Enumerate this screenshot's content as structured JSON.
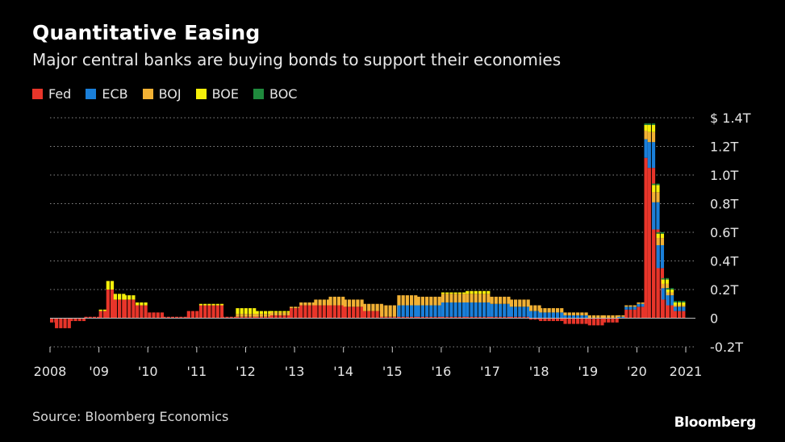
{
  "title": "Quantitative Easing",
  "subtitle": "Major central banks are buying bonds to support their economies",
  "source": "Source: Bloomberg Economics",
  "brand": "Bloomberg",
  "chart_data": {
    "type": "bar",
    "stacked": true,
    "grid": true,
    "legend_position": "top-left",
    "y_axis_side": "right",
    "ylim": [
      -0.2,
      1.4
    ],
    "yticks": [
      {
        "value": 1.4,
        "label": "$ 1.4T"
      },
      {
        "value": 1.2,
        "label": "1.2T"
      },
      {
        "value": 1.0,
        "label": "1.0T"
      },
      {
        "value": 0.8,
        "label": "0.8T"
      },
      {
        "value": 0.6,
        "label": "0.6T"
      },
      {
        "value": 0.4,
        "label": "0.4T"
      },
      {
        "value": 0.2,
        "label": "0.2T"
      },
      {
        "value": 0,
        "label": "0"
      },
      {
        "value": -0.2,
        "label": "-0.2T"
      }
    ],
    "xlim": [
      2008.0,
      2021.0
    ],
    "xticks": [
      {
        "value": 2008,
        "label": "2008"
      },
      {
        "value": 2009,
        "label": "'09"
      },
      {
        "value": 2010,
        "label": "'10"
      },
      {
        "value": 2011,
        "label": "'11"
      },
      {
        "value": 2012,
        "label": "'12"
      },
      {
        "value": 2013,
        "label": "'13"
      },
      {
        "value": 2014,
        "label": "'14"
      },
      {
        "value": 2015,
        "label": "'15"
      },
      {
        "value": 2016,
        "label": "'16"
      },
      {
        "value": 2017,
        "label": "'17"
      },
      {
        "value": 2018,
        "label": "'18"
      },
      {
        "value": 2019,
        "label": "'19"
      },
      {
        "value": 2020,
        "label": "'20"
      },
      {
        "value": 2021,
        "label": "2021"
      }
    ],
    "series": [
      {
        "name": "Fed",
        "color": "#e8352a",
        "key": "fed"
      },
      {
        "name": "ECB",
        "color": "#1a7fd9",
        "key": "ecb"
      },
      {
        "name": "BOJ",
        "color": "#f2b134",
        "key": "boj"
      },
      {
        "name": "BOE",
        "color": "#f5ef0a",
        "key": "boe"
      },
      {
        "name": "BOC",
        "color": "#1f8a3d",
        "key": "boc"
      }
    ],
    "segments": [
      {
        "start": 2008.0,
        "end": 2008.1,
        "fed": -0.03,
        "ecb": 0,
        "boj": 0,
        "boe": 0,
        "boc": 0
      },
      {
        "start": 2008.1,
        "end": 2008.4,
        "fed": -0.07,
        "ecb": 0,
        "boj": 0,
        "boe": 0,
        "boc": 0
      },
      {
        "start": 2008.4,
        "end": 2008.7,
        "fed": -0.02,
        "ecb": 0,
        "boj": 0,
        "boe": 0,
        "boc": 0
      },
      {
        "start": 2008.7,
        "end": 2009.0,
        "fed": 0.01,
        "ecb": 0,
        "boj": 0,
        "boe": 0,
        "boc": 0
      },
      {
        "start": 2009.0,
        "end": 2009.15,
        "fed": 0.05,
        "ecb": 0,
        "boj": 0,
        "boe": 0.01,
        "boc": 0
      },
      {
        "start": 2009.15,
        "end": 2009.3,
        "fed": 0.2,
        "ecb": 0,
        "boj": 0,
        "boe": 0.06,
        "boc": 0
      },
      {
        "start": 2009.3,
        "end": 2009.5,
        "fed": 0.13,
        "ecb": 0,
        "boj": 0,
        "boe": 0.04,
        "boc": 0
      },
      {
        "start": 2009.5,
        "end": 2009.75,
        "fed": 0.13,
        "ecb": 0,
        "boj": 0,
        "boe": 0.03,
        "boc": 0
      },
      {
        "start": 2009.75,
        "end": 2010.0,
        "fed": 0.09,
        "ecb": 0,
        "boj": 0,
        "boe": 0.02,
        "boc": 0
      },
      {
        "start": 2010.0,
        "end": 2010.3,
        "fed": 0.04,
        "ecb": 0,
        "boj": 0,
        "boe": 0,
        "boc": 0
      },
      {
        "start": 2010.3,
        "end": 2010.8,
        "fed": 0.01,
        "ecb": 0,
        "boj": 0,
        "boe": 0,
        "boc": 0
      },
      {
        "start": 2010.8,
        "end": 2011.05,
        "fed": 0.05,
        "ecb": 0,
        "boj": 0,
        "boe": 0,
        "boc": 0
      },
      {
        "start": 2011.05,
        "end": 2011.5,
        "fed": 0.09,
        "ecb": 0,
        "boj": 0,
        "boe": 0.01,
        "boc": 0
      },
      {
        "start": 2011.5,
        "end": 2011.8,
        "fed": 0.01,
        "ecb": 0,
        "boj": 0,
        "boe": 0,
        "boc": 0
      },
      {
        "start": 2011.8,
        "end": 2012.2,
        "fed": 0.01,
        "ecb": 0,
        "boj": 0.02,
        "boe": 0.04,
        "boc": 0
      },
      {
        "start": 2012.2,
        "end": 2012.5,
        "fed": 0.01,
        "ecb": 0,
        "boj": 0.02,
        "boe": 0.02,
        "boc": 0
      },
      {
        "start": 2012.5,
        "end": 2012.9,
        "fed": 0.02,
        "ecb": 0,
        "boj": 0.02,
        "boe": 0.01,
        "boc": 0
      },
      {
        "start": 2012.9,
        "end": 2013.1,
        "fed": 0.07,
        "ecb": 0,
        "boj": 0.01,
        "boe": 0,
        "boc": 0
      },
      {
        "start": 2013.1,
        "end": 2013.4,
        "fed": 0.09,
        "ecb": 0,
        "boj": 0.02,
        "boe": 0,
        "boc": 0
      },
      {
        "start": 2013.4,
        "end": 2013.7,
        "fed": 0.09,
        "ecb": 0,
        "boj": 0.04,
        "boe": 0,
        "boc": 0
      },
      {
        "start": 2013.7,
        "end": 2014.0,
        "fed": 0.09,
        "ecb": 0,
        "boj": 0.06,
        "boe": 0,
        "boc": 0
      },
      {
        "start": 2014.0,
        "end": 2014.4,
        "fed": 0.08,
        "ecb": 0,
        "boj": 0.05,
        "boe": 0,
        "boc": 0
      },
      {
        "start": 2014.4,
        "end": 2014.75,
        "fed": 0.05,
        "ecb": 0,
        "boj": 0.05,
        "boe": 0,
        "boc": 0
      },
      {
        "start": 2014.75,
        "end": 2015.1,
        "fed": 0.01,
        "ecb": 0,
        "boj": 0.08,
        "boe": 0,
        "boc": 0
      },
      {
        "start": 2015.1,
        "end": 2015.5,
        "fed": 0.01,
        "ecb": 0.08,
        "boj": 0.07,
        "boe": 0,
        "boc": 0
      },
      {
        "start": 2015.5,
        "end": 2016.0,
        "fed": 0.01,
        "ecb": 0.08,
        "boj": 0.06,
        "boe": 0,
        "boc": 0
      },
      {
        "start": 2016.0,
        "end": 2016.5,
        "fed": 0.01,
        "ecb": 0.1,
        "boj": 0.06,
        "boe": 0.01,
        "boc": 0
      },
      {
        "start": 2016.5,
        "end": 2017.0,
        "fed": 0.01,
        "ecb": 0.1,
        "boj": 0.06,
        "boe": 0.02,
        "boc": 0
      },
      {
        "start": 2017.0,
        "end": 2017.4,
        "fed": 0.01,
        "ecb": 0.09,
        "boj": 0.05,
        "boe": 0,
        "boc": 0
      },
      {
        "start": 2017.4,
        "end": 2017.8,
        "fed": 0.01,
        "ecb": 0.07,
        "boj": 0.05,
        "boe": 0,
        "boc": 0
      },
      {
        "start": 2017.8,
        "end": 2018.0,
        "fed": -0.01,
        "ecb": 0.05,
        "boj": 0.04,
        "boe": 0,
        "boc": 0
      },
      {
        "start": 2018.0,
        "end": 2018.5,
        "fed": -0.02,
        "ecb": 0.04,
        "boj": 0.03,
        "boe": 0,
        "boc": 0
      },
      {
        "start": 2018.5,
        "end": 2019.0,
        "fed": -0.04,
        "ecb": 0.02,
        "boj": 0.02,
        "boe": 0,
        "boc": 0
      },
      {
        "start": 2019.0,
        "end": 2019.3,
        "fed": -0.05,
        "ecb": 0,
        "boj": 0.02,
        "boe": 0,
        "boc": 0
      },
      {
        "start": 2019.3,
        "end": 2019.6,
        "fed": -0.03,
        "ecb": 0,
        "boj": 0.02,
        "boe": 0,
        "boc": 0
      },
      {
        "start": 2019.6,
        "end": 2019.75,
        "fed": 0.0,
        "ecb": 0.01,
        "boj": 0.01,
        "boe": 0,
        "boc": 0
      },
      {
        "start": 2019.75,
        "end": 2020.0,
        "fed": 0.06,
        "ecb": 0.02,
        "boj": 0.01,
        "boe": 0,
        "boc": 0
      },
      {
        "start": 2020.0,
        "end": 2020.15,
        "fed": 0.08,
        "ecb": 0.02,
        "boj": 0.01,
        "boe": 0,
        "boc": 0
      },
      {
        "start": 2020.15,
        "end": 2020.22,
        "fed": 1.12,
        "ecb": 0.13,
        "boj": 0.06,
        "boe": 0.04,
        "boc": 0.01
      },
      {
        "start": 2020.22,
        "end": 2020.31,
        "fed": 1.05,
        "ecb": 0.18,
        "boj": 0.07,
        "boe": 0.05,
        "boc": 0.01
      },
      {
        "start": 2020.31,
        "end": 2020.4,
        "fed": 0.62,
        "ecb": 0.19,
        "boj": 0.07,
        "boe": 0.05,
        "boc": 0.01
      },
      {
        "start": 2020.4,
        "end": 2020.5,
        "fed": 0.35,
        "ecb": 0.16,
        "boj": 0.05,
        "boe": 0.03,
        "boc": 0.01
      },
      {
        "start": 2020.5,
        "end": 2020.6,
        "fed": 0.13,
        "ecb": 0.08,
        "boj": 0.03,
        "boe": 0.03,
        "boc": 0.01
      },
      {
        "start": 2020.6,
        "end": 2020.75,
        "fed": 0.09,
        "ecb": 0.07,
        "boj": 0.02,
        "boe": 0.02,
        "boc": 0.01
      },
      {
        "start": 2020.75,
        "end": 2021.0,
        "fed": 0.05,
        "ecb": 0.03,
        "boj": 0.01,
        "boe": 0.02,
        "boc": 0.01
      }
    ]
  }
}
